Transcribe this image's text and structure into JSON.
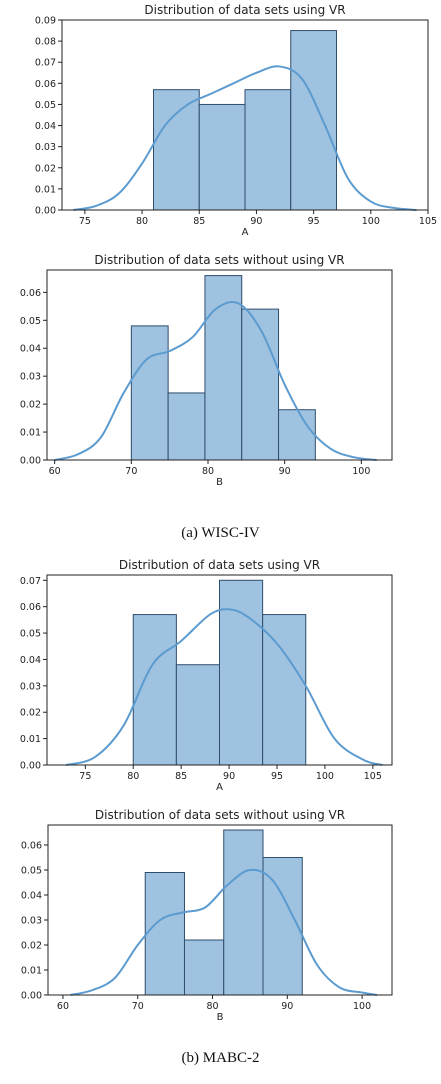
{
  "captions": {
    "a": "(a) WISC-IV",
    "b": "(b) MABC-2"
  },
  "colors": {
    "bar_fill": "#9ec2df",
    "bar_edge": "#2f4d6c",
    "kde_line": "#5b9bd0"
  },
  "chart_data": [
    {
      "type": "bar",
      "title": "Distribution of data sets using VR",
      "xlabel": "A",
      "xlim": [
        73,
        105
      ],
      "ylim": [
        0,
        0.09
      ],
      "xticks": [
        75,
        80,
        85,
        90,
        95,
        100,
        105
      ],
      "yticks": [
        0.0,
        0.01,
        0.02,
        0.03,
        0.04,
        0.05,
        0.06,
        0.07,
        0.08,
        0.09
      ],
      "ytick_decimals": 2,
      "bins": [
        {
          "x0": 81,
          "x1": 85,
          "value": 0.057
        },
        {
          "x0": 85,
          "x1": 89,
          "value": 0.05
        },
        {
          "x0": 89,
          "x1": 93,
          "value": 0.057
        },
        {
          "x0": 93,
          "x1": 97,
          "value": 0.085
        }
      ],
      "kde": {
        "x": [
          74,
          76,
          78,
          80,
          82,
          84,
          86,
          88,
          90,
          92,
          94,
          96,
          98,
          100,
          102,
          104
        ],
        "y": [
          0.0,
          0.002,
          0.008,
          0.022,
          0.04,
          0.05,
          0.055,
          0.06,
          0.065,
          0.068,
          0.062,
          0.04,
          0.015,
          0.004,
          0.001,
          0.0
        ]
      }
    },
    {
      "type": "bar",
      "title": "Distribution of data sets without using VR",
      "xlabel": "B",
      "xlim": [
        59,
        104
      ],
      "ylim": [
        0,
        0.068
      ],
      "xticks": [
        60,
        70,
        80,
        90,
        100
      ],
      "yticks": [
        0.0,
        0.01,
        0.02,
        0.03,
        0.04,
        0.05,
        0.06
      ],
      "ytick_decimals": 2,
      "bins": [
        {
          "x0": 70,
          "x1": 74.8,
          "value": 0.048
        },
        {
          "x0": 74.8,
          "x1": 79.6,
          "value": 0.024
        },
        {
          "x0": 79.6,
          "x1": 84.4,
          "value": 0.066
        },
        {
          "x0": 84.4,
          "x1": 89.2,
          "value": 0.054
        },
        {
          "x0": 89.2,
          "x1": 94,
          "value": 0.018
        }
      ],
      "kde": {
        "x": [
          60,
          63,
          66,
          69,
          72,
          75,
          78,
          81,
          84,
          87,
          90,
          93,
          96,
          99,
          102
        ],
        "y": [
          0.0,
          0.002,
          0.008,
          0.024,
          0.036,
          0.039,
          0.044,
          0.054,
          0.056,
          0.046,
          0.027,
          0.012,
          0.004,
          0.001,
          0.0
        ]
      }
    },
    {
      "type": "bar",
      "title": "Distribution of data sets using VR",
      "xlabel": "A",
      "xlim": [
        71,
        107
      ],
      "ylim": [
        0,
        0.072
      ],
      "xticks": [
        75,
        80,
        85,
        90,
        95,
        100,
        105
      ],
      "yticks": [
        0.0,
        0.01,
        0.02,
        0.03,
        0.04,
        0.05,
        0.06,
        0.07
      ],
      "ytick_decimals": 2,
      "bins": [
        {
          "x0": 80,
          "x1": 84.5,
          "value": 0.057
        },
        {
          "x0": 84.5,
          "x1": 89,
          "value": 0.038
        },
        {
          "x0": 89,
          "x1": 93.5,
          "value": 0.07
        },
        {
          "x0": 93.5,
          "x1": 98,
          "value": 0.057
        }
      ],
      "kde": {
        "x": [
          73,
          76,
          79,
          82,
          85,
          88,
          90,
          92,
          95,
          98,
          101,
          104,
          106
        ],
        "y": [
          0.0,
          0.003,
          0.015,
          0.038,
          0.047,
          0.057,
          0.059,
          0.056,
          0.046,
          0.03,
          0.01,
          0.002,
          0.0
        ]
      }
    },
    {
      "type": "bar",
      "title": "Distribution of data sets without using VR",
      "xlabel": "B",
      "xlim": [
        58,
        104
      ],
      "ylim": [
        0,
        0.068
      ],
      "xticks": [
        60,
        70,
        80,
        90,
        100
      ],
      "yticks": [
        0.0,
        0.01,
        0.02,
        0.03,
        0.04,
        0.05,
        0.06
      ],
      "ytick_decimals": 2,
      "bins": [
        {
          "x0": 71,
          "x1": 76.25,
          "value": 0.049
        },
        {
          "x0": 76.25,
          "x1": 81.5,
          "value": 0.022
        },
        {
          "x0": 81.5,
          "x1": 86.75,
          "value": 0.066
        },
        {
          "x0": 86.75,
          "x1": 92,
          "value": 0.055
        }
      ],
      "kde": {
        "x": [
          61,
          64,
          67,
          70,
          73,
          76,
          79,
          82,
          85,
          88,
          91,
          94,
          97,
          100,
          102
        ],
        "y": [
          0.0,
          0.002,
          0.007,
          0.02,
          0.03,
          0.033,
          0.035,
          0.044,
          0.05,
          0.046,
          0.03,
          0.012,
          0.003,
          0.001,
          0.0
        ]
      }
    }
  ]
}
